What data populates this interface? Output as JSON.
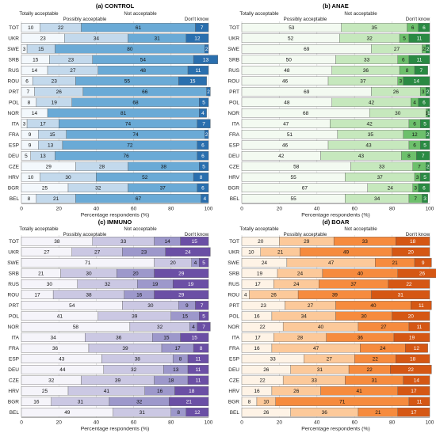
{
  "countries": [
    "TOT",
    "UKR",
    "SWE",
    "SRB",
    "RUS",
    "ROU",
    "PRT",
    "POL",
    "NOR",
    "ITA",
    "FRA",
    "ESP",
    "DEU",
    "CZE",
    "HRV",
    "BGR",
    "BEL"
  ],
  "legend_labels": [
    "Totally acceptable",
    "Possibly acceptable",
    "Not acceptable",
    "Don't know"
  ],
  "chart_data": [
    {
      "type": "bar",
      "orientation": "horizontal",
      "stacked": true,
      "title": "(a) CONTROL",
      "xlabel": "Percentage respondents (%)",
      "xlim": [
        0,
        100
      ],
      "xticks": [
        0,
        20,
        40,
        60,
        80,
        100
      ],
      "colors": [
        "#f3f8fc",
        "#c3d9ec",
        "#6aaad6",
        "#2a6fae"
      ],
      "series": [
        {
          "name": "Totally acceptable",
          "values": [
            10,
            23,
            3,
            15,
            14,
            6,
            7,
            8,
            14,
            3,
            9,
            9,
            5,
            29,
            10,
            25,
            8
          ]
        },
        {
          "name": "Possibly acceptable",
          "values": [
            22,
            34,
            15,
            23,
            27,
            23,
            26,
            19,
            0,
            17,
            15,
            13,
            13,
            28,
            30,
            32,
            21
          ]
        },
        {
          "name": "Not acceptable",
          "values": [
            61,
            31,
            80,
            54,
            48,
            55,
            66,
            68,
            81,
            74,
            74,
            72,
            76,
            38,
            52,
            37,
            67
          ]
        },
        {
          "name": "Don't know",
          "values": [
            7,
            12,
            2,
            13,
            11,
            15,
            2,
            5,
            4,
            7,
            2,
            6,
            6,
            5,
            8,
            6,
            4
          ]
        }
      ]
    },
    {
      "type": "bar",
      "orientation": "horizontal",
      "stacked": true,
      "title": "(b) ANAE",
      "xlabel": "Percentage respondents (%)",
      "xlim": [
        0,
        100
      ],
      "xticks": [
        0,
        20,
        40,
        60,
        80,
        100
      ],
      "colors": [
        "#f3faf1",
        "#c6e8bd",
        "#6dc06c",
        "#2a8a43"
      ],
      "series": [
        {
          "name": "Totally acceptable",
          "values": [
            53,
            52,
            69,
            50,
            48,
            46,
            69,
            48,
            68,
            47,
            51,
            46,
            42,
            58,
            55,
            67,
            55
          ]
        },
        {
          "name": "Possibly acceptable",
          "values": [
            35,
            32,
            27,
            33,
            36,
            37,
            26,
            42,
            30,
            42,
            35,
            43,
            43,
            33,
            37,
            24,
            34
          ]
        },
        {
          "name": "Not acceptable",
          "values": [
            6,
            5,
            2,
            6,
            8,
            3,
            3,
            4,
            1,
            6,
            12,
            6,
            8,
            7,
            3,
            3,
            7
          ]
        },
        {
          "name": "Don't know",
          "values": [
            6,
            11,
            2,
            11,
            7,
            14,
            2,
            6,
            1,
            5,
            2,
            5,
            7,
            2,
            5,
            6,
            3
          ]
        }
      ]
    },
    {
      "type": "bar",
      "orientation": "horizontal",
      "stacked": true,
      "title": "(c) IMMUNO",
      "xlabel": "Percentage respondents (%)",
      "xlim": [
        0,
        100
      ],
      "xticks": [
        0,
        20,
        40,
        60,
        80,
        100
      ],
      "colors": [
        "#f5f4fa",
        "#cbc8e3",
        "#9d98cb",
        "#6b4fa5"
      ],
      "series": [
        {
          "name": "Totally acceptable",
          "values": [
            38,
            27,
            71,
            21,
            30,
            17,
            54,
            41,
            58,
            34,
            36,
            43,
            44,
            32,
            25,
            16,
            49
          ]
        },
        {
          "name": "Possibly acceptable",
          "values": [
            33,
            27,
            20,
            30,
            32,
            38,
            30,
            39,
            32,
            36,
            39,
            38,
            32,
            39,
            41,
            31,
            31
          ]
        },
        {
          "name": "Not acceptable",
          "values": [
            14,
            23,
            4,
            20,
            19,
            16,
            9,
            15,
            4,
            15,
            17,
            8,
            13,
            18,
            16,
            32,
            8
          ]
        },
        {
          "name": "Don't know",
          "values": [
            15,
            24,
            5,
            29,
            19,
            29,
            7,
            5,
            7,
            15,
            8,
            11,
            11,
            11,
            18,
            21,
            12
          ]
        }
      ]
    },
    {
      "type": "bar",
      "orientation": "horizontal",
      "stacked": true,
      "title": "(d) BOAR",
      "xlabel": "Percentage respondents (%)",
      "xlim": [
        0,
        100
      ],
      "xticks": [
        0,
        20,
        40,
        60,
        80,
        100
      ],
      "colors": [
        "#fef3e6",
        "#fcc99a",
        "#f68b3e",
        "#d55714"
      ],
      "series": [
        {
          "name": "Totally acceptable",
          "values": [
            20,
            10,
            24,
            19,
            17,
            4,
            23,
            16,
            22,
            17,
            16,
            33,
            26,
            22,
            16,
            8,
            26
          ]
        },
        {
          "name": "Possibly acceptable",
          "values": [
            29,
            21,
            47,
            24,
            24,
            26,
            27,
            34,
            40,
            28,
            47,
            27,
            31,
            33,
            26,
            10,
            36
          ]
        },
        {
          "name": "Not acceptable",
          "values": [
            33,
            49,
            21,
            40,
            37,
            39,
            40,
            30,
            27,
            36,
            24,
            22,
            22,
            31,
            41,
            71,
            21
          ]
        },
        {
          "name": "Don't know",
          "values": [
            18,
            20,
            9,
            26,
            22,
            31,
            11,
            20,
            11,
            19,
            12,
            18,
            22,
            14,
            17,
            11,
            17
          ]
        }
      ]
    }
  ]
}
